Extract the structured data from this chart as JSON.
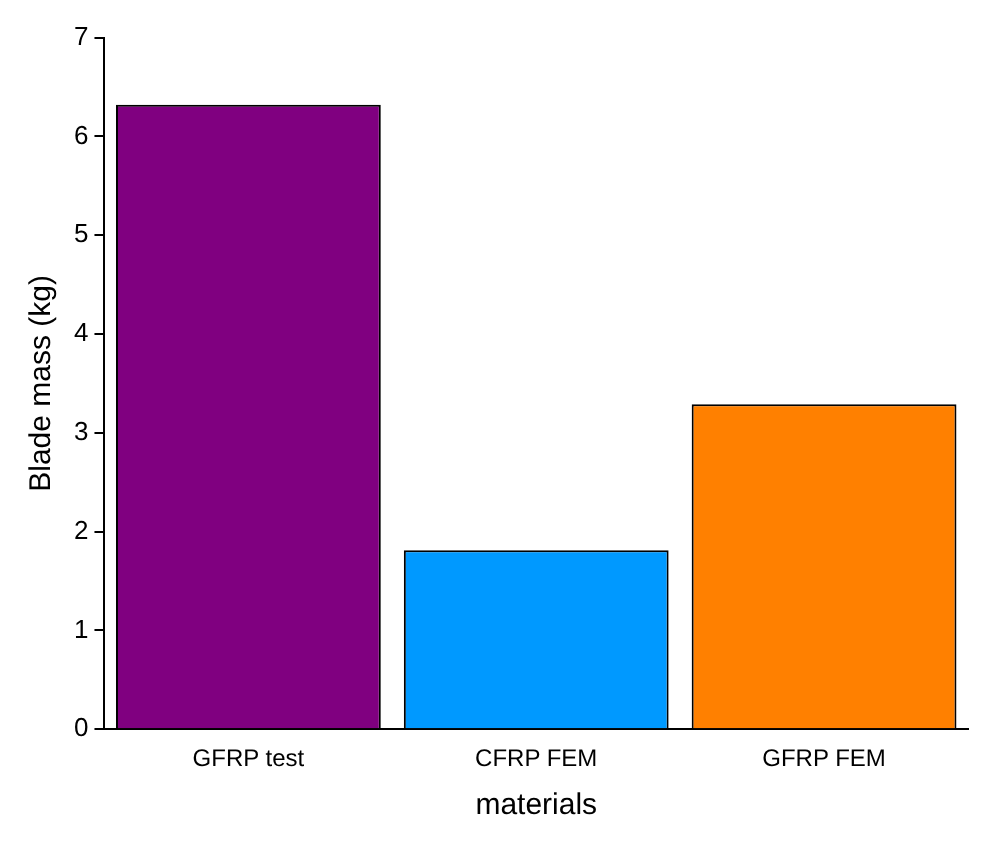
{
  "chart_data": {
    "type": "bar",
    "xlabel": "materials",
    "ylabel": "Blade mass (kg)",
    "categories": [
      "GFRP test",
      "CFRP FEM",
      "GFRP FEM"
    ],
    "values": [
      6.32,
      1.81,
      3.29
    ],
    "colors": [
      "#800080",
      "#0099ff",
      "#ff8000"
    ],
    "ylim": [
      0,
      7
    ],
    "yticks": [
      0,
      1,
      2,
      3,
      4,
      5,
      6,
      7
    ],
    "grid": false,
    "legend": false
  }
}
